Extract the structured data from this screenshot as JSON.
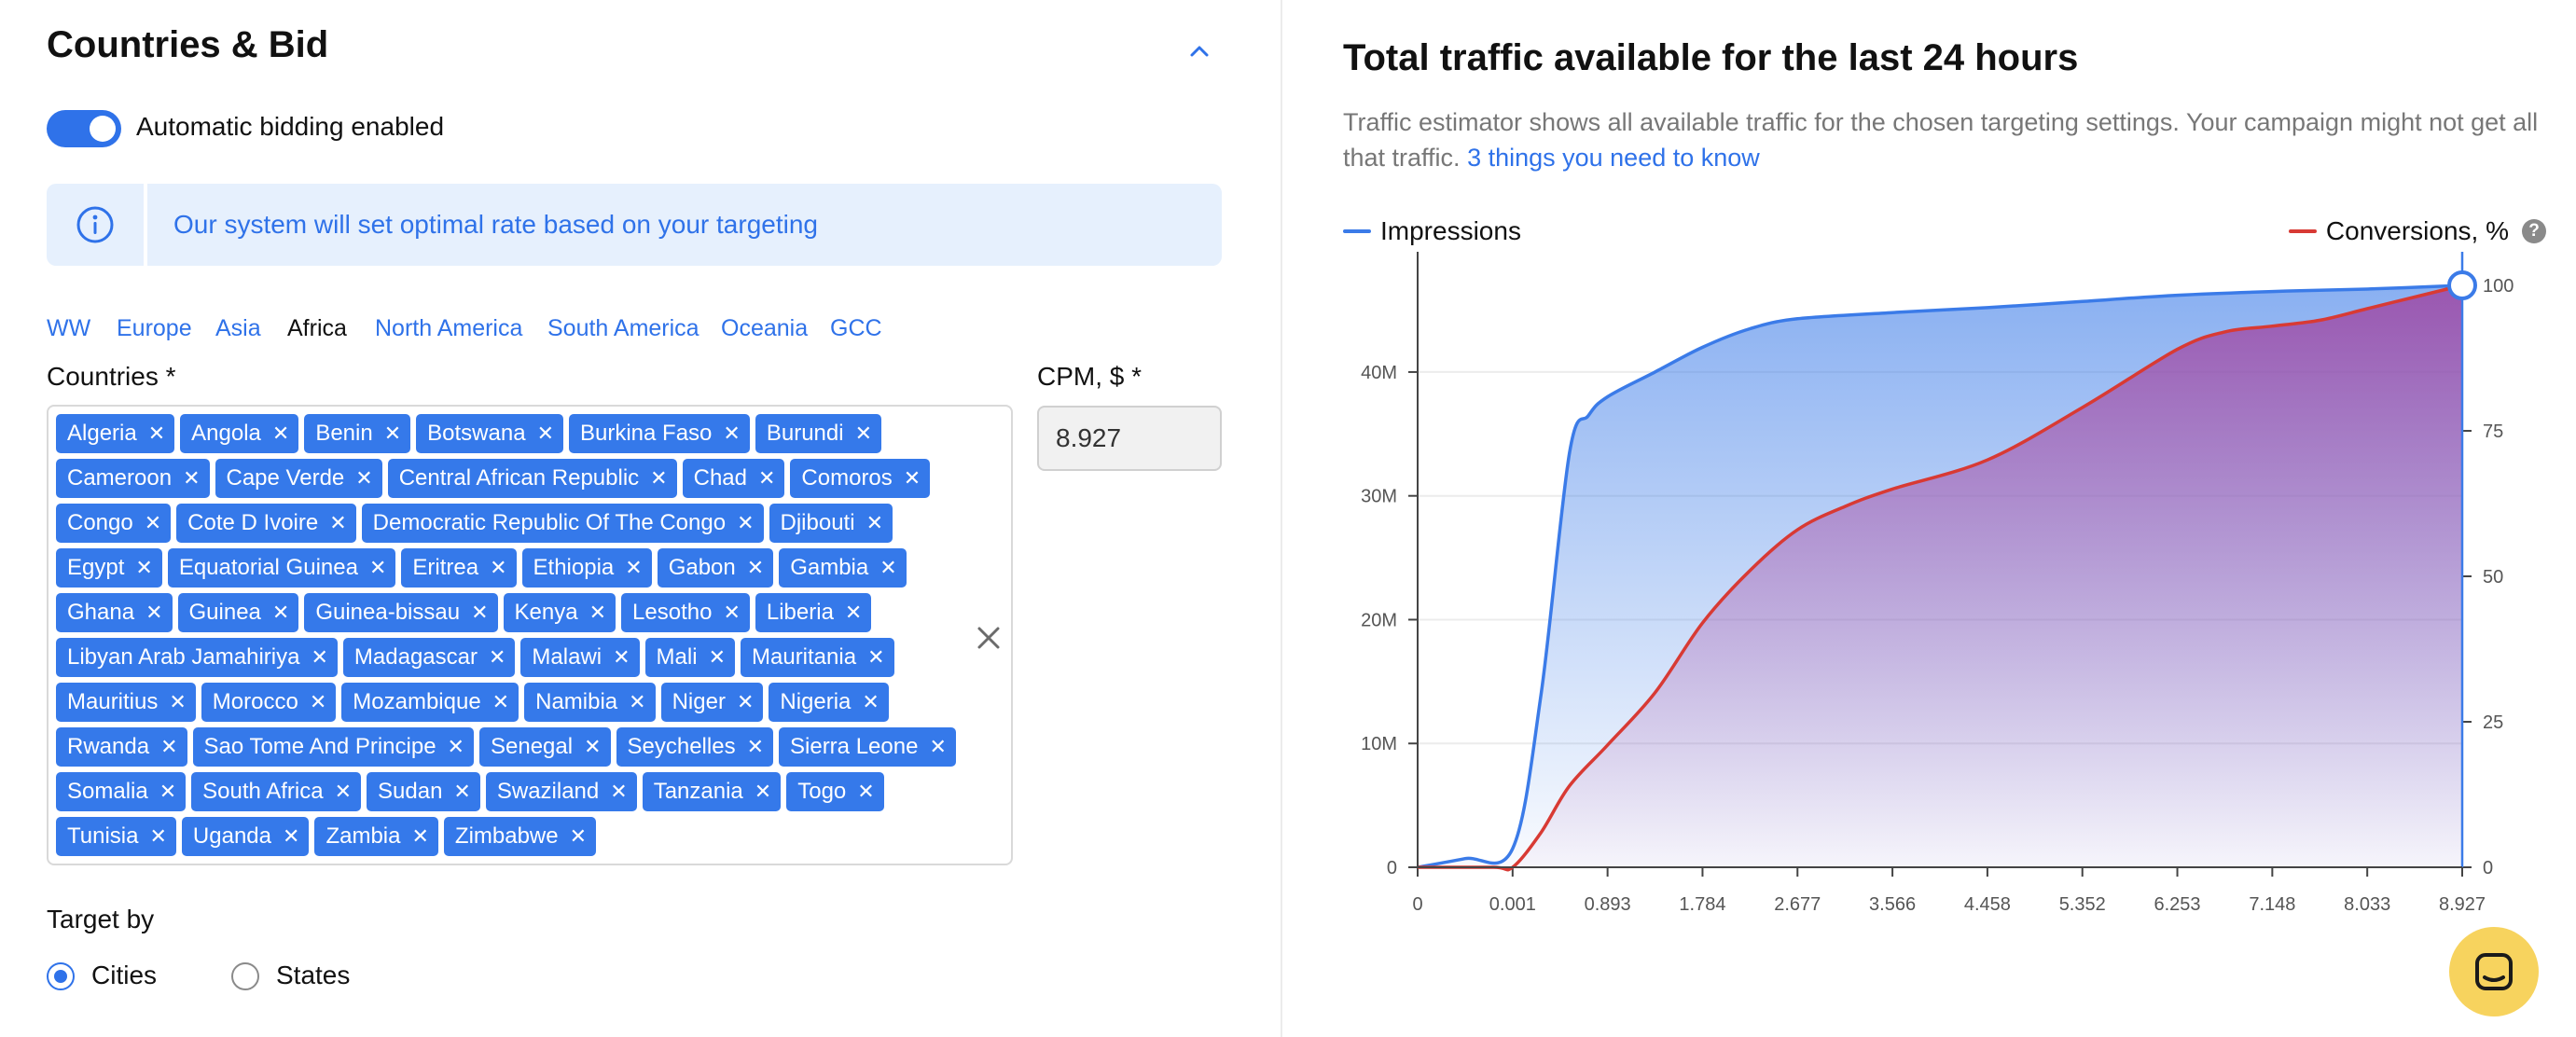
{
  "left": {
    "section_title": "Countries & Bid",
    "auto_bid_label": "Automatic bidding enabled",
    "auto_bid_enabled": true,
    "info_text": "Our system will set optimal rate based on your targeting",
    "regions": [
      "WW",
      "Europe",
      "Asia",
      "Africa",
      "North America",
      "South America",
      "Oceania",
      "GCC"
    ],
    "active_region": "Africa",
    "countries_label": "Countries *",
    "cpm_label": "CPM, $ *",
    "cpm_value": "8.927",
    "countries": [
      "Algeria",
      "Angola",
      "Benin",
      "Botswana",
      "Burkina Faso",
      "Burundi",
      "Cameroon",
      "Cape Verde",
      "Central African Republic",
      "Chad",
      "Comoros",
      "Congo",
      "Cote D Ivoire",
      "Democratic Republic Of The Congo",
      "Djibouti",
      "Egypt",
      "Equatorial Guinea",
      "Eritrea",
      "Ethiopia",
      "Gabon",
      "Gambia",
      "Ghana",
      "Guinea",
      "Guinea-bissau",
      "Kenya",
      "Lesotho",
      "Liberia",
      "Libyan Arab Jamahiriya",
      "Madagascar",
      "Malawi",
      "Mali",
      "Mauritania",
      "Mauritius",
      "Morocco",
      "Mozambique",
      "Namibia",
      "Niger",
      "Nigeria",
      "Rwanda",
      "Sao Tome And Principe",
      "Senegal",
      "Seychelles",
      "Sierra Leone",
      "Somalia",
      "South Africa",
      "Sudan",
      "Swaziland",
      "Tanzania",
      "Togo",
      "Tunisia",
      "Uganda",
      "Zambia",
      "Zimbabwe"
    ],
    "target_by_label": "Target by",
    "target_options": [
      "Cities",
      "States"
    ],
    "target_selected": "Cities"
  },
  "right": {
    "title": "Total traffic available for the last 24 hours",
    "description": "Traffic estimator shows all available traffic for the chosen targeting settings. Your campaign might not get all that traffic. ",
    "link_text": "3 things you need to know",
    "legend_impressions": "Impressions",
    "legend_conversions": "Conversions, %"
  },
  "colors": {
    "accent": "#2f72e9",
    "impressions": "#3b7be8",
    "conversions": "#d83a34",
    "chat": "#f7d35e"
  },
  "chart_data": {
    "type": "area",
    "x_ticks": [
      "0",
      "0.001",
      "0.893",
      "1.784",
      "2.677",
      "3.566",
      "4.458",
      "5.352",
      "6.253",
      "7.148",
      "8.033",
      "8.927"
    ],
    "y_left_ticks": [
      "0",
      "10M",
      "20M",
      "30M",
      "40M"
    ],
    "y_right_ticks": [
      "0",
      "25",
      "50",
      "75",
      "100"
    ],
    "y_left_max": 47000000,
    "y_right_max": 100,
    "grid": true,
    "series": [
      {
        "name": "Impressions",
        "axis": "left",
        "x": [
          0,
          0.5,
          1.0,
          1.3,
          1.6,
          1.8,
          2.0,
          2.5,
          3.0,
          3.5,
          4.0,
          5.0,
          6.0,
          7.0,
          8.0,
          9.0,
          10.0,
          11.0
        ],
        "values": [
          0,
          700000,
          1500000,
          14000000,
          33500000,
          36500000,
          38000000,
          40000000,
          42000000,
          43500000,
          44300000,
          44800000,
          45200000,
          45700000,
          46200000,
          46500000,
          46700000,
          47000000
        ]
      },
      {
        "name": "Conversions, %",
        "axis": "right",
        "x": [
          0,
          0.8,
          1.0,
          1.3,
          1.6,
          2.0,
          2.5,
          3.0,
          3.5,
          4.0,
          4.5,
          5.0,
          6.0,
          7.0,
          8.0,
          8.5,
          9.0,
          9.5,
          10.0,
          10.5,
          11.0
        ],
        "values": [
          0,
          0,
          0,
          6,
          14,
          21,
          30,
          42,
          51,
          58,
          62,
          65,
          70,
          79,
          89,
          92,
          93,
          94,
          96,
          98,
          100
        ]
      }
    ]
  }
}
